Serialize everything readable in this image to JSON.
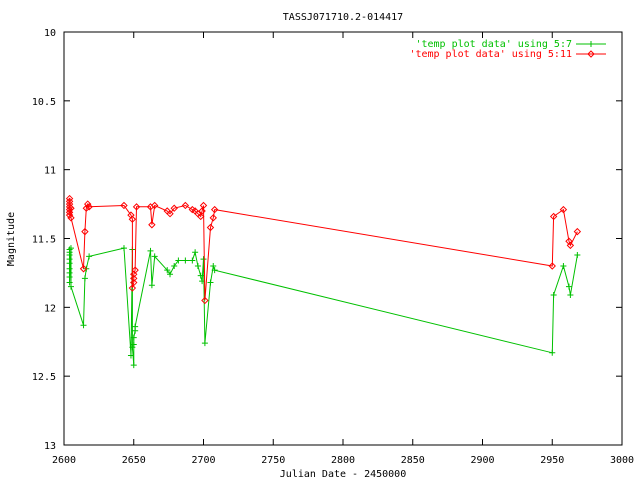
{
  "chart_data": {
    "type": "line",
    "title": "TASSJ071710.2-014417",
    "xlabel": "Julian Date - 2450000",
    "ylabel": "Magnitude",
    "xlim": [
      2600,
      3000
    ],
    "ylim": [
      10,
      13
    ],
    "y_inverted": true,
    "grid": false,
    "legend_placement": "top-right",
    "x_ticks": [
      "2600",
      "2650",
      "2700",
      "2750",
      "2800",
      "2850",
      "2900",
      "2950",
      "3000"
    ],
    "y_ticks": [
      "10",
      "10.5",
      "11",
      "11.5",
      "12",
      "12.5",
      "13"
    ],
    "series": [
      {
        "name": "'temp plot data' using 5:7",
        "color": "#00c000",
        "marker": "plus",
        "x": [
          2604,
          2604,
          2604,
          2604,
          2604,
          2604,
          2604,
          2604,
          2604,
          2605,
          2605,
          2614,
          2615,
          2616,
          2618,
          2643,
          2648,
          2649,
          2649,
          2650,
          2650,
          2650,
          2651,
          2651,
          2662,
          2663,
          2665,
          2674,
          2676,
          2679,
          2682,
          2687,
          2692,
          2694,
          2696,
          2698,
          2699,
          2700,
          2701,
          2705,
          2707,
          2708,
          2950,
          2951,
          2958,
          2962,
          2963,
          2968
        ],
        "y": [
          11.6,
          11.58,
          11.62,
          11.65,
          11.68,
          11.72,
          11.75,
          11.78,
          11.82,
          11.57,
          11.85,
          12.13,
          11.79,
          11.72,
          11.63,
          11.57,
          12.35,
          11.58,
          12.29,
          12.42,
          12.27,
          12.22,
          12.17,
          12.14,
          11.59,
          11.84,
          11.63,
          11.73,
          11.76,
          11.7,
          11.66,
          11.66,
          11.66,
          11.6,
          11.7,
          11.77,
          11.81,
          11.65,
          12.26,
          11.82,
          11.7,
          11.73,
          12.33,
          11.91,
          11.7,
          11.85,
          11.91,
          11.62
        ]
      },
      {
        "name": "'temp plot data' using 5:11",
        "color": "#ff0000",
        "marker": "diamond",
        "x": [
          2604,
          2604,
          2604,
          2604,
          2604,
          2604,
          2604,
          2605,
          2605,
          2614,
          2615,
          2616,
          2617,
          2618,
          2643,
          2648,
          2649,
          2649,
          2650,
          2650,
          2650,
          2651,
          2652,
          2662,
          2663,
          2665,
          2674,
          2676,
          2679,
          2687,
          2692,
          2694,
          2696,
          2698,
          2699,
          2700,
          2701,
          2705,
          2707,
          2708,
          2950,
          2951,
          2958,
          2962,
          2963,
          2968
        ],
        "y": [
          11.23,
          11.21,
          11.25,
          11.27,
          11.29,
          11.31,
          11.33,
          11.28,
          11.35,
          11.72,
          11.45,
          11.28,
          11.25,
          11.27,
          11.26,
          11.33,
          11.36,
          11.86,
          11.82,
          11.79,
          11.76,
          11.73,
          11.27,
          11.27,
          11.4,
          11.26,
          11.3,
          11.32,
          11.28,
          11.26,
          11.29,
          11.3,
          11.32,
          11.34,
          11.3,
          11.26,
          11.95,
          11.42,
          11.35,
          11.29,
          11.7,
          11.34,
          11.29,
          11.52,
          11.55,
          11.45
        ]
      }
    ]
  }
}
